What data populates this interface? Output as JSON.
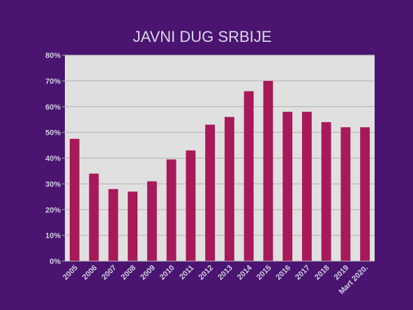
{
  "chart_data": {
    "type": "bar",
    "title": "JAVNI DUG SRBIJE",
    "xlabel": "",
    "ylabel": "",
    "categories": [
      "2005",
      "2006",
      "2007",
      "2008",
      "2009",
      "2010",
      "2011",
      "2012",
      "2013",
      "2014",
      "2015",
      "2016",
      "2017",
      "2018",
      "2019",
      "Mart 2020."
    ],
    "values": [
      47.5,
      34,
      28,
      27,
      31,
      39.5,
      43,
      53,
      56,
      66,
      70,
      58,
      58,
      54,
      52,
      52
    ],
    "ylim": [
      0,
      80
    ],
    "y_ticks": [
      0,
      10,
      20,
      30,
      40,
      50,
      60,
      70,
      80
    ],
    "y_tick_labels": [
      "0%",
      "10%",
      "20%",
      "30%",
      "40%",
      "50%",
      "60%",
      "70%",
      "80%"
    ],
    "grid": true,
    "legend": "none",
    "colors": {
      "background": "#4a1470",
      "plot_area": "#e0e0e0",
      "bar": "#a8195a",
      "gridline": "#b0b0b0",
      "text": "#d0d0e0"
    }
  }
}
